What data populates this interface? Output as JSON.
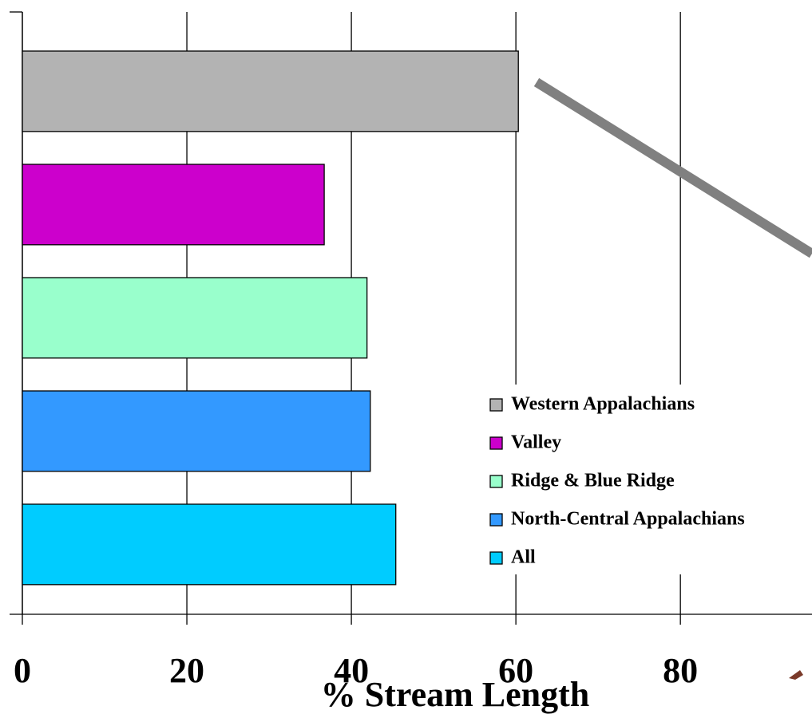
{
  "chart_data": {
    "type": "bar",
    "orientation": "horizontal",
    "x_label": "% Stream Length",
    "categories": [
      null
    ],
    "series": [
      {
        "name": "Western Appalachians",
        "color": "#b3b3b3",
        "values": [
          60.3
        ]
      },
      {
        "name": "Valley",
        "color": "#cc00cc",
        "values": [
          36.7
        ]
      },
      {
        "name": "Ridge & Blue Ridge",
        "color": "#99ffcc",
        "values": [
          41.9
        ]
      },
      {
        "name": "North-Central Appalachians",
        "color": "#3399ff",
        "values": [
          42.3
        ]
      },
      {
        "name": "All",
        "color": "#00ccff",
        "values": [
          45.4
        ]
      }
    ],
    "xlim": [
      0,
      96
    ],
    "xticks": [
      0,
      20,
      40,
      60,
      80
    ],
    "grid": true,
    "legend": "lower-right"
  }
}
